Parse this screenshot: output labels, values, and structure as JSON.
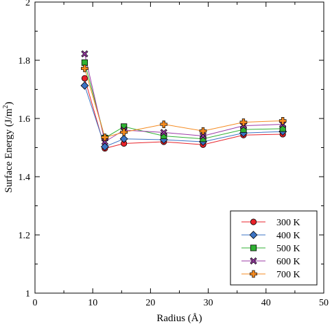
{
  "chart_data": {
    "type": "line",
    "title": "",
    "xlabel": "Radius (Å)",
    "ylabel_main": "Surface Energy (J/m",
    "ylabel_sup": "2",
    "ylabel_close": ")",
    "xlim": [
      0,
      50
    ],
    "ylim": [
      1,
      2
    ],
    "xticks": [
      0,
      10,
      20,
      30,
      40,
      50
    ],
    "yticks": [
      1,
      1.2,
      1.4,
      1.6,
      1.8,
      2
    ],
    "xtick_labels": [
      "0",
      "10",
      "20",
      "30",
      "40",
      "50"
    ],
    "ytick_labels": [
      "1",
      "1.2",
      "1.4",
      "1.6",
      "1.8",
      "2"
    ],
    "grid": false,
    "legend_position": "bottom-right",
    "x": [
      8.6,
      12.1,
      15.4,
      22.3,
      29.1,
      36.1,
      42.9
    ],
    "series": [
      {
        "name": "300 K",
        "color": "#e8222a",
        "marker": "circle",
        "values": [
          1.738,
          1.497,
          1.514,
          1.52,
          1.51,
          1.543,
          1.546
        ]
      },
      {
        "name": "400 K",
        "color": "#3b73c4",
        "marker": "diamond",
        "values": [
          1.713,
          1.503,
          1.53,
          1.527,
          1.52,
          1.55,
          1.555
        ]
      },
      {
        "name": "500 K",
        "color": "#2fb233",
        "marker": "square",
        "values": [
          1.792,
          1.533,
          1.572,
          1.54,
          1.53,
          1.562,
          1.565
        ]
      },
      {
        "name": "600 K",
        "color": "#9b3aa6",
        "marker": "x",
        "values": [
          1.822,
          1.52,
          1.56,
          1.552,
          1.54,
          1.575,
          1.58
        ]
      },
      {
        "name": "700 K",
        "color": "#f58a1f",
        "marker": "plus",
        "values": [
          1.772,
          1.535,
          1.553,
          1.58,
          1.557,
          1.587,
          1.592
        ]
      }
    ]
  }
}
